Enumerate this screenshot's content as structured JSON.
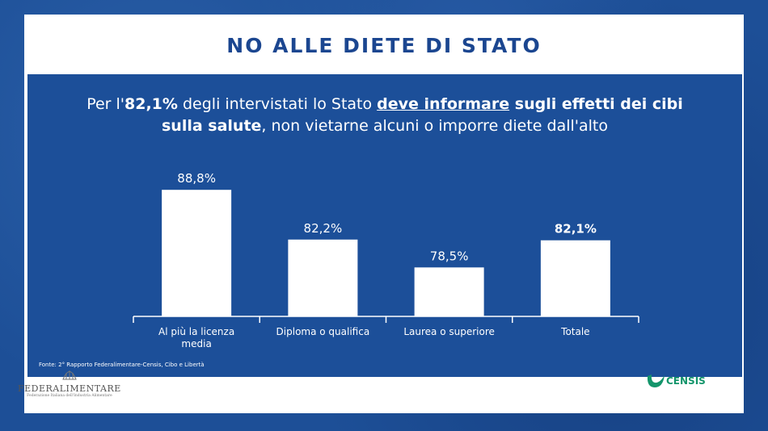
{
  "title": "NO ALLE DIETE DI STATO",
  "headline": {
    "part1": "Per l'",
    "pct": "82,1%",
    "part2": "  degli intervistati lo Stato ",
    "emph": "deve informare",
    "part3": " sugli effetti dei cibi",
    "part4": "sulla salute",
    "part5": ", non vietarne alcuni o imporre diete dall'alto"
  },
  "source": "Fonte: 2° Rapporto Federalimentare-Censis, Cibo e Libertà",
  "logos": {
    "left": {
      "name": "FEDERALIMENTARE",
      "sub": "Federazione Italiana dell'Industria Alimentare"
    },
    "right": {
      "name": "CENSIS"
    }
  },
  "colors": {
    "background": "#1d4f97",
    "panel": "#1c4f99",
    "title": "#1b4690",
    "bars": "#ffffff",
    "censis": "#14956b"
  },
  "chart_data": {
    "type": "bar",
    "categories": [
      "Al più la licenza media",
      "Diploma o qualifica",
      "Laurea o superiore",
      "Totale"
    ],
    "category_lines": [
      [
        "Al più la licenza",
        "media"
      ],
      [
        "Diploma o qualifica"
      ],
      [
        "Laurea o superiore"
      ],
      [
        "Totale"
      ]
    ],
    "values": [
      88.8,
      82.2,
      78.5,
      82.1
    ],
    "data_labels": [
      "88,8%",
      "82,2%",
      "78,5%",
      "82,1%"
    ],
    "highlighted": [
      "Totale"
    ],
    "unit": "%",
    "ylim": [
      72,
      90
    ],
    "grid": false
  }
}
